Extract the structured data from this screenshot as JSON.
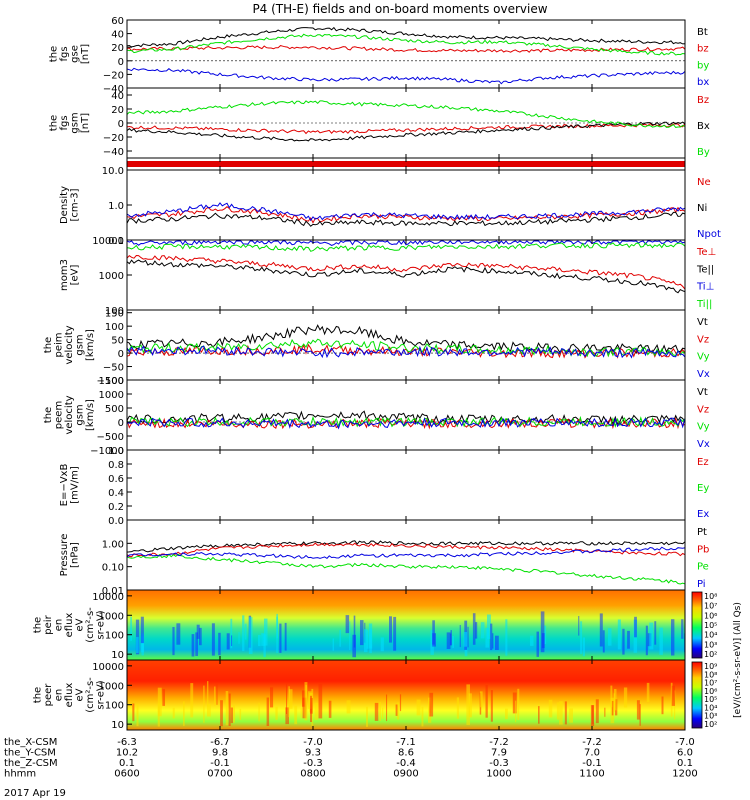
{
  "title": "P4 (TH-E) fields and on-board moments overview",
  "colors": {
    "black": "#000000",
    "red": "#e00000",
    "green": "#00e000",
    "blue": "#0000e0"
  },
  "date_label": "2017 Apr 19",
  "x_axis": {
    "rows": [
      {
        "label": "the_X-CSM",
        "values": [
          "-6.3",
          "-6.7",
          "-7.0",
          "-7.1",
          "-7.2",
          "-7.2",
          "-7.0"
        ]
      },
      {
        "label": "the_Y-CSM",
        "values": [
          "10.2",
          "9.8",
          "9.3",
          "8.6",
          "7.9",
          "7.0",
          "6.0"
        ]
      },
      {
        "label": "the_Z-CSM",
        "values": [
          "0.1",
          "-0.1",
          "-0.3",
          "-0.4",
          "-0.3",
          "-0.1",
          "0.1"
        ]
      },
      {
        "label": "hhmm",
        "values": [
          "0600",
          "0700",
          "0800",
          "0900",
          "1000",
          "1100",
          "1200"
        ]
      }
    ]
  },
  "chart_data": [
    {
      "type": "line",
      "ylabel": [
        "the",
        "fgs",
        "gse",
        "[nT]"
      ],
      "ylim": [
        -40,
        60
      ],
      "yticks": [
        "60",
        "40",
        "20",
        "0",
        "−20",
        "−40"
      ],
      "x_hours": [
        6,
        6.5,
        7,
        7.5,
        8,
        8.5,
        9,
        9.5,
        10,
        10.5,
        11,
        11.5,
        12
      ],
      "series": [
        {
          "name": "Bt",
          "color": "black",
          "values": [
            22,
            25,
            35,
            42,
            48,
            45,
            40,
            35,
            34,
            32,
            30,
            28,
            27
          ]
        },
        {
          "name": "bz",
          "color": "red",
          "values": [
            17,
            18,
            19,
            20,
            20,
            18,
            16,
            15,
            15,
            15,
            16,
            17,
            18
          ]
        },
        {
          "name": "by",
          "color": "green",
          "values": [
            14,
            17,
            26,
            33,
            38,
            35,
            30,
            27,
            28,
            23,
            17,
            12,
            10
          ]
        },
        {
          "name": "bx",
          "color": "blue",
          "values": [
            -12,
            -14,
            -20,
            -25,
            -28,
            -27,
            -25,
            -28,
            -32,
            -25,
            -22,
            -19,
            -17
          ]
        }
      ]
    },
    {
      "type": "line",
      "ylabel": [
        "the",
        "fgs",
        "gsm",
        "[nT]"
      ],
      "ylim": [
        -50,
        50
      ],
      "yticks": [
        "40",
        "20",
        "0",
        "−20",
        "−40"
      ],
      "x_hours": [
        6,
        6.5,
        7,
        7.5,
        8,
        8.5,
        9,
        9.5,
        10,
        10.5,
        11,
        11.5,
        12
      ],
      "series": [
        {
          "name": "Bz",
          "color": "red",
          "values": [
            -6,
            -7,
            -9,
            -11,
            -13,
            -12,
            -10,
            -8,
            -6,
            -5,
            -4,
            -3,
            -3
          ]
        },
        {
          "name": "Bx",
          "color": "black",
          "values": [
            -10,
            -13,
            -18,
            -22,
            -25,
            -21,
            -17,
            -14,
            -10,
            -7,
            -4,
            -1,
            0
          ]
        },
        {
          "name": "By",
          "color": "green",
          "values": [
            14,
            17,
            23,
            28,
            30,
            27,
            25,
            22,
            17,
            10,
            2,
            -3,
            -5
          ]
        }
      ]
    },
    {
      "type": "table",
      "flag": "red bar",
      "extent_hours": [
        6,
        12
      ]
    },
    {
      "type": "line",
      "log": true,
      "ylabel": [
        "Density",
        "[cm-3]"
      ],
      "ylim": [
        0.1,
        10
      ],
      "yticks": [
        "10.0",
        "1.0",
        "0.1"
      ],
      "x_hours": [
        6,
        6.5,
        7,
        7.5,
        8,
        8.5,
        9,
        9.5,
        10,
        10.5,
        11,
        11.5,
        12
      ],
      "series": [
        {
          "name": "Ne",
          "color": "red",
          "values": [
            0.45,
            0.55,
            0.8,
            0.6,
            0.35,
            0.5,
            0.45,
            0.42,
            0.4,
            0.45,
            0.5,
            0.6,
            0.75
          ]
        },
        {
          "name": "Ni",
          "color": "black",
          "values": [
            0.35,
            0.4,
            0.5,
            0.42,
            0.28,
            0.32,
            0.3,
            0.3,
            0.3,
            0.33,
            0.38,
            0.45,
            0.55
          ]
        },
        {
          "name": "Npot",
          "color": "blue",
          "values": [
            0.5,
            0.65,
            1.0,
            0.7,
            0.4,
            0.55,
            0.5,
            0.45,
            0.45,
            0.5,
            0.55,
            0.65,
            0.8
          ]
        }
      ]
    },
    {
      "type": "line",
      "log": true,
      "ylabel": [
        "mom3",
        "[eV]"
      ],
      "ylim": [
        100,
        10000
      ],
      "yticks": [
        "10000",
        "1000",
        "100"
      ],
      "x_hours": [
        6,
        6.5,
        7,
        7.5,
        8,
        8.5,
        9,
        9.5,
        10,
        10.5,
        11,
        11.5,
        12
      ],
      "series": [
        {
          "name": "Te⊥",
          "color": "red",
          "values": [
            3500,
            3000,
            2500,
            2000,
            1500,
            1800,
            1400,
            2000,
            1800,
            1500,
            1200,
            900,
            450
          ]
        },
        {
          "name": "Te||",
          "color": "black",
          "values": [
            2500,
            2000,
            1800,
            1400,
            1000,
            1300,
            1000,
            1500,
            1300,
            1000,
            800,
            600,
            300
          ]
        },
        {
          "name": "Ti⊥",
          "color": "blue",
          "values": [
            8000,
            8500,
            9000,
            9000,
            8000,
            8500,
            8500,
            9000,
            9000,
            9000,
            9000,
            9000,
            9000
          ]
        },
        {
          "name": "Ti||",
          "color": "green",
          "values": [
            6000,
            6500,
            6500,
            6000,
            5500,
            6000,
            6000,
            6500,
            6500,
            7000,
            7000,
            7000,
            7000
          ]
        }
      ]
    },
    {
      "type": "line",
      "ylabel": [
        "the",
        "peim",
        "velocity",
        "gsm",
        "[km/s]"
      ],
      "ylim": [
        -100,
        160
      ],
      "yticks": [
        "150",
        "100",
        "50",
        "0",
        "−50",
        "−100"
      ],
      "x_hours": [
        6,
        6.5,
        7,
        7.5,
        8,
        8.5,
        9,
        9.5,
        10,
        10.5,
        11,
        11.5,
        12
      ],
      "series": [
        {
          "name": "Vt",
          "color": "black",
          "values": [
            30,
            35,
            40,
            60,
            90,
            80,
            40,
            30,
            25,
            20,
            20,
            15,
            15
          ]
        },
        {
          "name": "Vz",
          "color": "red",
          "values": [
            5,
            5,
            10,
            10,
            15,
            10,
            5,
            5,
            0,
            0,
            0,
            0,
            0
          ]
        },
        {
          "name": "Vy",
          "color": "green",
          "values": [
            15,
            20,
            20,
            30,
            40,
            30,
            20,
            15,
            10,
            10,
            5,
            5,
            5
          ]
        },
        {
          "name": "Vx",
          "color": "blue",
          "values": [
            10,
            10,
            10,
            5,
            0,
            5,
            5,
            5,
            5,
            5,
            0,
            0,
            0
          ]
        }
      ]
    },
    {
      "type": "line",
      "ylabel": [
        "the",
        "peem",
        "velocity",
        "gsm",
        "[km/s]"
      ],
      "ylim": [
        -1000,
        1500
      ],
      "yticks": [
        "1500",
        "1000",
        "500",
        "0",
        "−500",
        "−1000"
      ],
      "x_hours": [
        6,
        6.5,
        7,
        7.5,
        8,
        8.5,
        9,
        9.5,
        10,
        10.5,
        11,
        11.5,
        12
      ],
      "series": [
        {
          "name": "Vt",
          "color": "black",
          "values": [
            100,
            100,
            150,
            150,
            250,
            250,
            150,
            100,
            100,
            100,
            80,
            80,
            80
          ]
        },
        {
          "name": "Vz",
          "color": "red",
          "values": [
            -50,
            -50,
            -60,
            -60,
            -60,
            -50,
            -50,
            -50,
            -40,
            -40,
            -40,
            -40,
            -40
          ]
        },
        {
          "name": "Vy",
          "color": "green",
          "values": [
            0,
            0,
            0,
            0,
            0,
            0,
            0,
            0,
            0,
            0,
            0,
            0,
            0
          ]
        },
        {
          "name": "Vx",
          "color": "blue",
          "values": [
            -20,
            -20,
            -30,
            -40,
            -80,
            -60,
            -40,
            -30,
            -30,
            -20,
            -20,
            -20,
            -20
          ]
        }
      ]
    },
    {
      "type": "line",
      "ylabel": [
        "E=−VxB",
        "[mV/m]"
      ],
      "ylim": [
        0,
        1
      ],
      "yticks": [
        "1.0",
        "0.8",
        "0.6",
        "0.4",
        "0.2",
        "0.0"
      ],
      "series": [
        {
          "name": "Ez",
          "color": "red",
          "values": []
        },
        {
          "name": "Ey",
          "color": "green",
          "values": []
        },
        {
          "name": "Ex",
          "color": "blue",
          "values": []
        }
      ]
    },
    {
      "type": "line",
      "log": true,
      "ylabel": [
        "Pressure",
        "[nPa]"
      ],
      "ylim": [
        0.01,
        10
      ],
      "yticks": [
        "1.00",
        "0.10",
        "0.01"
      ],
      "x_hours": [
        6,
        6.5,
        7,
        7.5,
        8,
        8.5,
        9,
        9.5,
        10,
        10.5,
        11,
        11.5,
        12
      ],
      "series": [
        {
          "name": "Pt",
          "color": "black",
          "values": [
            0.4,
            0.6,
            0.8,
            0.9,
            1.0,
            1.1,
            1.0,
            1.0,
            1.0,
            1.0,
            1.0,
            1.0,
            1.0
          ]
        },
        {
          "name": "Pb",
          "color": "red",
          "values": [
            0.3,
            0.35,
            0.6,
            0.75,
            0.9,
            0.9,
            0.8,
            0.7,
            0.65,
            0.55,
            0.45,
            0.38,
            0.35
          ]
        },
        {
          "name": "Pe",
          "color": "green",
          "values": [
            0.25,
            0.3,
            0.2,
            0.15,
            0.1,
            0.12,
            0.1,
            0.1,
            0.08,
            0.06,
            0.04,
            0.03,
            0.02
          ]
        },
        {
          "name": "Pi",
          "color": "blue",
          "values": [
            0.3,
            0.35,
            0.35,
            0.3,
            0.25,
            0.3,
            0.3,
            0.3,
            0.35,
            0.4,
            0.45,
            0.55,
            0.65
          ]
        }
      ]
    },
    {
      "type": "heatmap",
      "ylabel": [
        "the",
        "peir",
        "en",
        "eflux",
        "eV",
        "(cm²-s-",
        "sr-eV)"
      ],
      "log": true,
      "ylim": [
        5,
        20000
      ],
      "yticks": [
        "10000",
        "1000",
        "100",
        "10"
      ],
      "colorbar_ticks": [
        "10⁸",
        "10⁷",
        "10⁶",
        "10⁵",
        "10⁴",
        "10³",
        "10²"
      ],
      "colorbar_label": "[eV/(cm²-s-sr-eV)] (All Qs)"
    },
    {
      "type": "heatmap",
      "ylabel": [
        "the",
        "peer",
        "en",
        "eflux",
        "eV",
        "(cm²-s-",
        "sr-eV)"
      ],
      "log": true,
      "ylim": [
        5,
        20000
      ],
      "yticks": [
        "10000",
        "1000",
        "100",
        "10"
      ],
      "colorbar_ticks": [
        "10⁹",
        "10⁸",
        "10⁷",
        "10⁶",
        "10⁵",
        "10⁴",
        "10³",
        "10²"
      ]
    }
  ]
}
